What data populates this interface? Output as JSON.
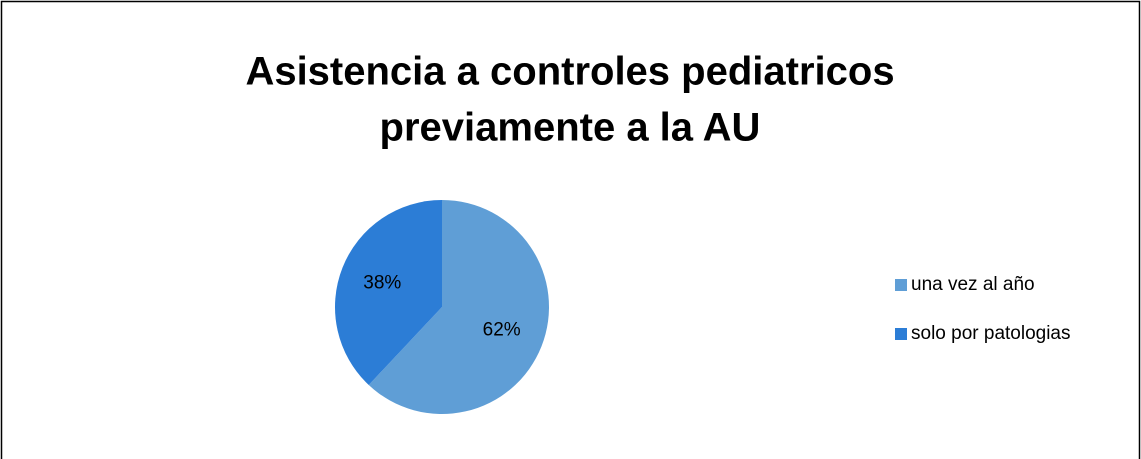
{
  "chart_data": {
    "type": "pie",
    "title": [
      "Asistencia a controles pediatricos",
      "previamente a la AU"
    ],
    "categories": [
      "una vez al año",
      "solo por patologias"
    ],
    "values": [
      62,
      38
    ],
    "value_labels": [
      "62%",
      "38%"
    ],
    "colors": [
      "#5f9ed6",
      "#2c7dd6"
    ]
  }
}
